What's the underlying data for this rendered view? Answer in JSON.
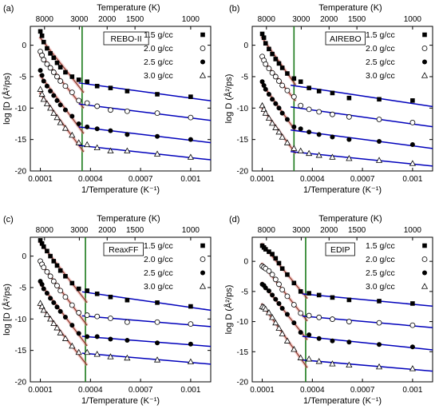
{
  "chart_data": [
    {
      "type": "scatter",
      "panel_label": "(a)",
      "model_label": "REBO-II",
      "xlabel": "1/Temperature (K⁻¹)",
      "ylabel": "log [D (Å²/ps)",
      "top_axis_label": "Temperature (K)",
      "top_ticks": [
        "8000",
        "3000",
        "2000",
        "1500",
        "1000"
      ],
      "x_ticks": [
        "0.0001",
        "0.0004",
        "0.0007",
        "0.001"
      ],
      "y_ticks": [
        "0",
        "-5",
        "-10",
        "-15",
        "-20"
      ],
      "xlim": [
        4e-05,
        0.00112
      ],
      "ylim": [
        -20,
        3
      ],
      "vline_x": 0.00035,
      "grid": false,
      "legend_position": "top-right",
      "series": [
        {
          "name": "1.5 g/cc",
          "marker": "filled-square",
          "x": [
            0.0001,
            0.00011,
            0.00012,
            0.00014,
            0.00016,
            0.00018,
            0.0002,
            0.00022,
            0.00025,
            0.00029,
            0.00033,
            0.00038,
            0.00044,
            0.00052,
            0.00062,
            0.0008,
            0.001
          ],
          "y": [
            2.2,
            1.5,
            0.5,
            -0.5,
            -1.3,
            -2.0,
            -2.8,
            -3.5,
            -4.3,
            -5.0,
            -5.5,
            -5.8,
            -6.5,
            -6.8,
            -7.3,
            -7.8,
            -8.2
          ]
        },
        {
          "name": "2.0 g/cc",
          "marker": "open-circle",
          "x": [
            0.0001,
            0.00011,
            0.00012,
            0.00014,
            0.00016,
            0.00018,
            0.0002,
            0.00022,
            0.00025,
            0.00029,
            0.00033,
            0.00038,
            0.00044,
            0.00052,
            0.00062,
            0.0008,
            0.001
          ],
          "y": [
            -1.0,
            -1.6,
            -2.3,
            -3.0,
            -3.6,
            -4.3,
            -5.0,
            -5.7,
            -6.5,
            -7.5,
            -8.8,
            -9.2,
            -9.7,
            -10.3,
            -10.5,
            -10.8,
            -11.5
          ]
        },
        {
          "name": "2.5 g/cc",
          "marker": "filled-circle",
          "x": [
            0.0001,
            0.00011,
            0.00012,
            0.00014,
            0.00016,
            0.00018,
            0.0002,
            0.00022,
            0.00025,
            0.00029,
            0.00033,
            0.00038,
            0.00044,
            0.00052,
            0.00062,
            0.0008,
            0.001
          ],
          "y": [
            -4.0,
            -4.8,
            -5.7,
            -6.5,
            -7.3,
            -8.0,
            -8.8,
            -9.5,
            -10.3,
            -11.3,
            -12.5,
            -13.0,
            -13.3,
            -13.6,
            -14.2,
            -14.5,
            -15.0
          ]
        },
        {
          "name": "3.0 g/cc",
          "marker": "open-triangle",
          "x": [
            0.0001,
            0.00011,
            0.00012,
            0.00014,
            0.00016,
            0.00018,
            0.0002,
            0.00022,
            0.00025,
            0.00029,
            0.00033,
            0.00038,
            0.00044,
            0.00052,
            0.00062,
            0.0008,
            0.001
          ],
          "y": [
            -7.0,
            -7.8,
            -8.6,
            -9.3,
            -10.0,
            -10.8,
            -11.5,
            -12.3,
            -13.2,
            -14.3,
            -15.5,
            -15.8,
            -16.3,
            -16.8,
            -16.8,
            -17.3,
            -17.8
          ]
        }
      ]
    },
    {
      "type": "scatter",
      "panel_label": "(b)",
      "model_label": "AIREBO",
      "xlabel": "1/Temperature (K⁻¹)",
      "ylabel": "log D (Å²/ps)",
      "top_axis_label": "Temperature (K)",
      "top_ticks": [
        "8000",
        "3000",
        "2000",
        "1500",
        "1000"
      ],
      "x_ticks": [
        "0.0001",
        "0.0004",
        "0.0007",
        "0.001"
      ],
      "y_ticks": [
        "0",
        "-5",
        "-10",
        "-15",
        "-20"
      ],
      "xlim": [
        4e-05,
        0.00112
      ],
      "ylim": [
        -20,
        3
      ],
      "vline_x": 0.00029,
      "grid": false,
      "legend_position": "top-right",
      "series": [
        {
          "name": "1.5 g/cc",
          "marker": "filled-square",
          "x": [
            0.0001,
            0.00011,
            0.00012,
            0.00014,
            0.00016,
            0.00018,
            0.0002,
            0.00022,
            0.00025,
            0.00029,
            0.00033,
            0.00038,
            0.00044,
            0.00052,
            0.00062,
            0.0008,
            0.001
          ],
          "y": [
            1.8,
            1.2,
            0.3,
            -0.6,
            -1.4,
            -2.2,
            -2.9,
            -3.6,
            -4.5,
            -5.3,
            -5.8,
            -6.8,
            -7.3,
            -7.6,
            -8.4,
            -8.6,
            -8.8
          ]
        },
        {
          "name": "2.0 g/cc",
          "marker": "open-circle",
          "x": [
            0.0001,
            0.00011,
            0.00012,
            0.00014,
            0.00016,
            0.00018,
            0.0002,
            0.00022,
            0.00025,
            0.00029,
            0.00033,
            0.00038,
            0.00044,
            0.00052,
            0.00062,
            0.0008,
            0.001
          ],
          "y": [
            -1.8,
            -2.4,
            -3.0,
            -3.7,
            -4.4,
            -5.0,
            -5.7,
            -6.4,
            -7.2,
            -8.2,
            -9.6,
            -10.2,
            -10.6,
            -11.0,
            -11.4,
            -11.8,
            -12.3
          ]
        },
        {
          "name": "2.5 g/cc",
          "marker": "filled-circle",
          "x": [
            0.0001,
            0.00011,
            0.00012,
            0.00014,
            0.00016,
            0.00018,
            0.0002,
            0.00022,
            0.00025,
            0.00029,
            0.00033,
            0.00038,
            0.00044,
            0.00052,
            0.00062,
            0.0008,
            0.001
          ],
          "y": [
            -5.8,
            -6.4,
            -7.0,
            -7.8,
            -8.6,
            -9.3,
            -10.0,
            -10.8,
            -11.8,
            -13.0,
            -13.3,
            -13.8,
            -14.2,
            -14.6,
            -15.0,
            -15.3,
            -15.8
          ]
        },
        {
          "name": "3.0 g/cc",
          "marker": "open-triangle",
          "x": [
            0.0001,
            0.00011,
            0.00012,
            0.00014,
            0.00016,
            0.00018,
            0.0002,
            0.00022,
            0.00025,
            0.00029,
            0.00033,
            0.00038,
            0.00044,
            0.00052,
            0.00062,
            0.0008,
            0.001
          ],
          "y": [
            -9.6,
            -10.2,
            -10.8,
            -11.6,
            -12.4,
            -13.1,
            -13.8,
            -14.6,
            -15.5,
            -16.4,
            -16.8,
            -17.2,
            -17.5,
            -17.8,
            -18.0,
            -18.3,
            -18.8
          ]
        }
      ]
    },
    {
      "type": "scatter",
      "panel_label": "(c)",
      "model_label": "ReaxFF",
      "xlabel": "1/Temperature (K⁻¹)",
      "ylabel": "log [D (Å²/ps)",
      "top_axis_label": "Temperature (K)",
      "top_ticks": [
        "8000",
        "3000",
        "2000",
        "1500",
        "1000"
      ],
      "x_ticks": [
        "0.0001",
        "0.0004",
        "0.0007",
        "0.001"
      ],
      "y_ticks": [
        "0",
        "-5",
        "-10",
        "-15",
        "-20"
      ],
      "xlim": [
        4e-05,
        0.00112
      ],
      "ylim": [
        -20,
        3
      ],
      "vline_x": 0.00037,
      "grid": false,
      "legend_position": "top-right",
      "series": [
        {
          "name": "1.5 g/cc",
          "marker": "filled-square",
          "x": [
            0.0001,
            0.00011,
            0.00012,
            0.00014,
            0.00016,
            0.00018,
            0.0002,
            0.00022,
            0.00025,
            0.00029,
            0.00033,
            0.00038,
            0.00044,
            0.00052,
            0.00062,
            0.0008,
            0.001
          ],
          "y": [
            2.5,
            2.0,
            1.5,
            0.8,
            0.0,
            -0.8,
            -1.5,
            -2.3,
            -3.2,
            -4.3,
            -5.2,
            -5.5,
            -6.0,
            -6.5,
            -7.0,
            -7.4,
            -8.0
          ]
        },
        {
          "name": "2.0 g/cc",
          "marker": "open-circle",
          "x": [
            0.0001,
            0.00011,
            0.00012,
            0.00014,
            0.00016,
            0.00018,
            0.0002,
            0.00022,
            0.00025,
            0.00029,
            0.00033,
            0.00038,
            0.00044,
            0.00052,
            0.00062,
            0.0008,
            0.001
          ],
          "y": [
            -0.8,
            -1.3,
            -1.8,
            -2.5,
            -3.2,
            -4.0,
            -4.7,
            -5.5,
            -6.5,
            -7.8,
            -9.0,
            -9.4,
            -9.6,
            -9.9,
            -10.5,
            -10.5,
            -10.8
          ]
        },
        {
          "name": "2.5 g/cc",
          "marker": "filled-circle",
          "x": [
            0.0001,
            0.00011,
            0.00012,
            0.00014,
            0.00016,
            0.00018,
            0.0002,
            0.00022,
            0.00025,
            0.00029,
            0.00033,
            0.00038,
            0.00044,
            0.00052,
            0.00062,
            0.0008,
            0.001
          ],
          "y": [
            -4.0,
            -4.5,
            -5.2,
            -5.9,
            -6.7,
            -7.4,
            -8.1,
            -8.8,
            -9.7,
            -11.0,
            -12.3,
            -12.8,
            -12.8,
            -13.2,
            -13.4,
            -13.8,
            -14.0
          ]
        },
        {
          "name": "3.0 g/cc",
          "marker": "open-triangle",
          "x": [
            0.0001,
            0.00011,
            0.00012,
            0.00014,
            0.00016,
            0.00018,
            0.0002,
            0.00022,
            0.00025,
            0.00029,
            0.00033,
            0.00038,
            0.00044,
            0.00052,
            0.00062,
            0.0008,
            0.001
          ],
          "y": [
            -7.5,
            -8.0,
            -8.6,
            -9.3,
            -10.0,
            -10.7,
            -11.4,
            -12.2,
            -13.1,
            -14.3,
            -15.3,
            -15.3,
            -15.6,
            -16.0,
            -16.2,
            -16.5,
            -16.8
          ]
        }
      ]
    },
    {
      "type": "scatter",
      "panel_label": "(d)",
      "model_label": "EDIP",
      "xlabel": "1/Temperature (K⁻¹)",
      "ylabel": "log D (Å²/ps)",
      "top_axis_label": "Temperature (K)",
      "top_ticks": [
        "8000",
        "3000",
        "2000",
        "1500",
        "1000"
      ],
      "x_ticks": [
        "0.0001",
        "0.0004",
        "0.0007",
        "0.001"
      ],
      "y_ticks": [
        "0",
        "-5",
        "-10",
        "-15",
        "-20"
      ],
      "xlim": [
        4e-05,
        0.00112
      ],
      "ylim": [
        -20,
        4
      ],
      "vline_x": 0.00036,
      "grid": false,
      "legend_position": "top-right",
      "series": [
        {
          "name": "1.5 g/cc",
          "marker": "filled-square",
          "x": [
            0.0001,
            0.00011,
            0.00012,
            0.00014,
            0.00016,
            0.00018,
            0.0002,
            0.00022,
            0.00025,
            0.00029,
            0.00033,
            0.00038,
            0.00044,
            0.00052,
            0.00062,
            0.0008,
            0.001
          ],
          "y": [
            2.6,
            2.3,
            2.0,
            1.6,
            1.2,
            0.5,
            -0.3,
            -1.2,
            -2.2,
            -3.6,
            -5.0,
            -5.3,
            -5.6,
            -6.0,
            -6.4,
            -6.6,
            -7.0
          ]
        },
        {
          "name": "2.0 g/cc",
          "marker": "open-circle",
          "x": [
            0.0001,
            0.00011,
            0.00012,
            0.00014,
            0.00016,
            0.00018,
            0.0002,
            0.00022,
            0.00025,
            0.00029,
            0.00033,
            0.00038,
            0.00044,
            0.00052,
            0.00062,
            0.0008,
            0.001
          ],
          "y": [
            -0.8,
            -1.0,
            -1.2,
            -1.6,
            -2.2,
            -3.0,
            -3.8,
            -4.7,
            -5.8,
            -7.2,
            -8.6,
            -9.0,
            -9.3,
            -9.6,
            -10.0,
            -10.2,
            -10.6
          ]
        },
        {
          "name": "2.5 g/cc",
          "marker": "filled-circle",
          "x": [
            0.0001,
            0.00011,
            0.00012,
            0.00014,
            0.00016,
            0.00018,
            0.0002,
            0.00022,
            0.00025,
            0.00029,
            0.00033,
            0.00038,
            0.00044,
            0.00052,
            0.00062,
            0.0008,
            0.001
          ],
          "y": [
            -3.8,
            -4.0,
            -4.4,
            -4.9,
            -5.6,
            -6.3,
            -7.0,
            -7.8,
            -8.8,
            -10.2,
            -11.8,
            -12.2,
            -12.8,
            -13.2,
            -13.4,
            -13.8,
            -14.2
          ]
        },
        {
          "name": "3.0 g/cc",
          "marker": "open-triangle",
          "x": [
            0.0001,
            0.00011,
            0.00012,
            0.00014,
            0.00016,
            0.00018,
            0.0002,
            0.00022,
            0.00025,
            0.00029,
            0.00033,
            0.00038,
            0.00044,
            0.00052,
            0.00062,
            0.0008,
            0.001
          ],
          "y": [
            -7.5,
            -7.6,
            -7.9,
            -8.5,
            -9.3,
            -10.2,
            -11.1,
            -12.0,
            -13.2,
            -14.6,
            -16.0,
            -16.2,
            -16.6,
            -17.0,
            -17.2,
            -17.5,
            -17.8
          ]
        }
      ]
    }
  ]
}
